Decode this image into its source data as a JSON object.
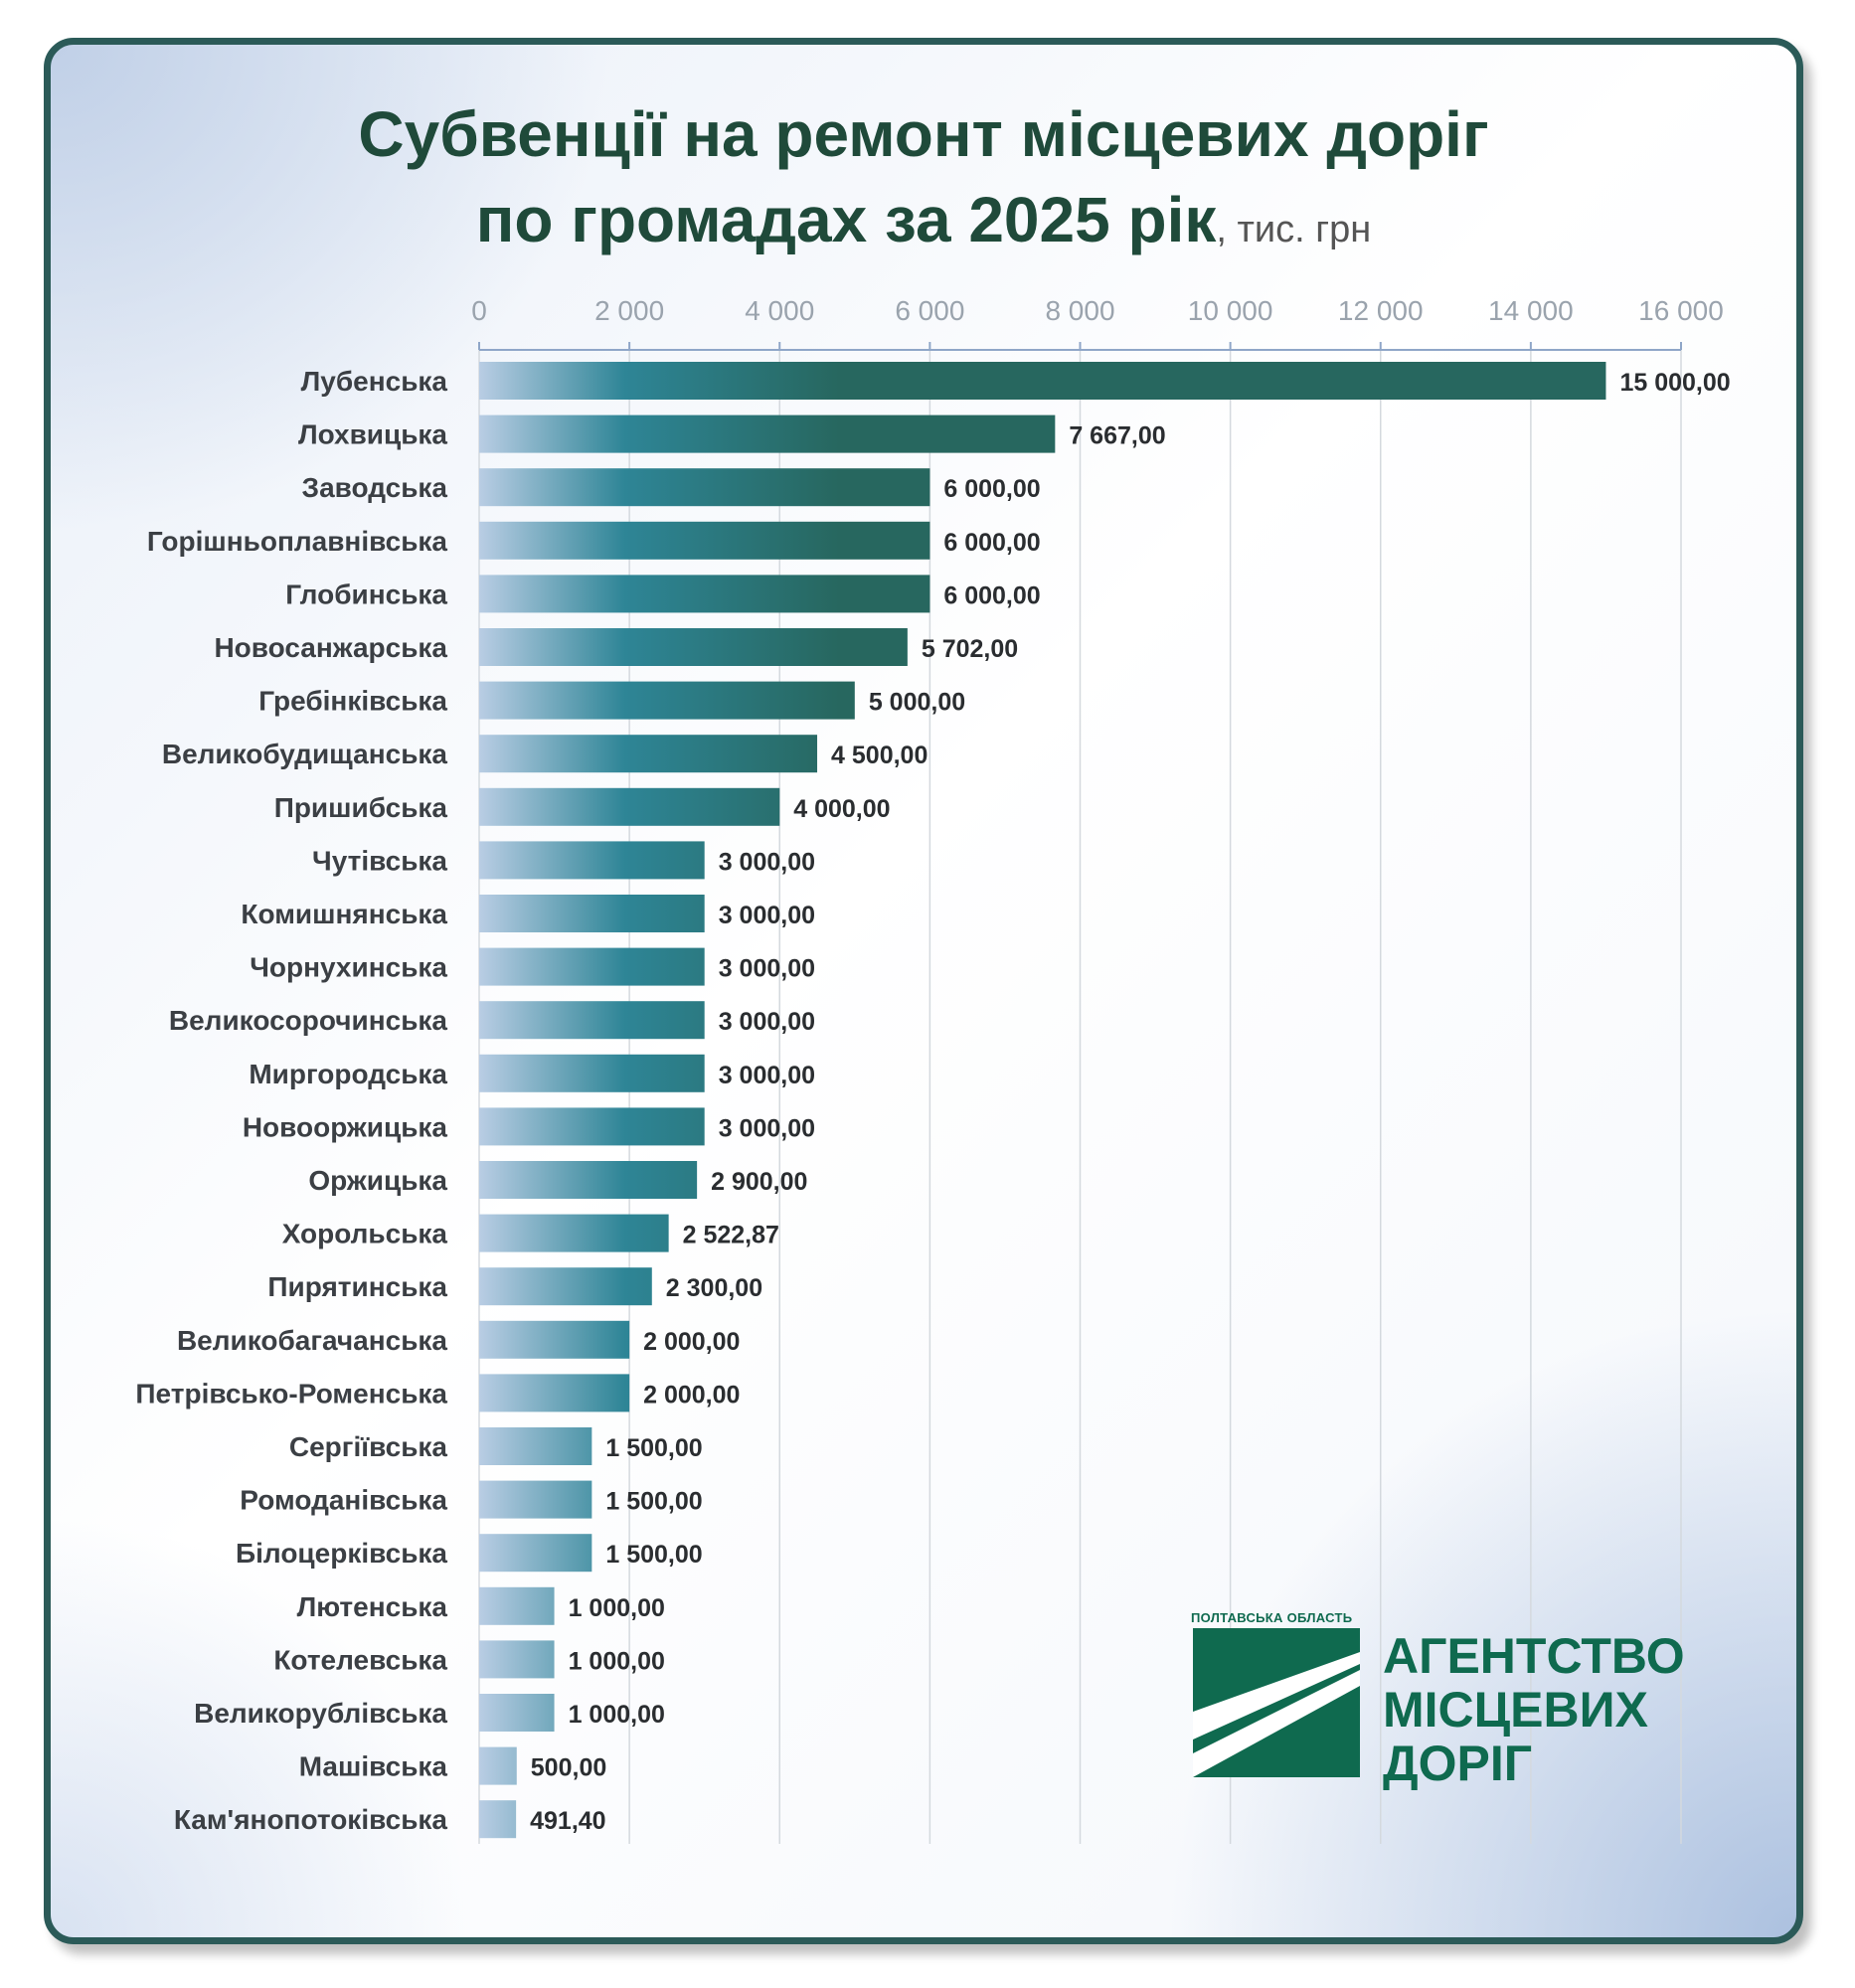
{
  "title": {
    "line1": "Субвенції на ремонт місцевих доріг",
    "line2": "по громадах за 2025 рік",
    "unit": ", тис. грн"
  },
  "colors": {
    "bar_dark": "#27675f",
    "bar_mid": "#2e8596",
    "bar_light": "#b9cde4",
    "title": "#1f4a3a",
    "border": "#2b5a58",
    "brand": "#0f6a4f"
  },
  "chart_data": {
    "type": "bar",
    "orientation": "horizontal",
    "xlim": [
      0,
      16000
    ],
    "ticks": [
      "0",
      "2 000",
      "4 000",
      "6 000",
      "8 000",
      "10 000",
      "12 000",
      "14 000",
      "16 000"
    ],
    "tick_values": [
      0,
      2000,
      4000,
      6000,
      8000,
      10000,
      12000,
      14000,
      16000
    ],
    "grid": true,
    "axis_position": "top",
    "categories": [
      "Лубенська",
      "Лохвицька",
      "Заводська",
      "Горішньоплавнівська",
      "Глобинська",
      "Новосанжарська",
      "Гребінківська",
      "Великобудищанська",
      "Пришибська",
      "Чутівська",
      "Комишнянська",
      "Чорнухинська",
      "Великосорочинська",
      "Миргородська",
      "Новооржицька",
      "Оржицька",
      "Хорольська",
      "Пирятинська",
      "Великобагачанська",
      "Петрівсько-Роменська",
      "Сергіївська",
      "Ромоданівська",
      "Білоцерківська",
      "Лютенська",
      "Котелевська",
      "Великорублівська",
      "Машівська",
      "Кам'янопотоківська"
    ],
    "values": [
      15000,
      7667,
      6000,
      6000,
      6000,
      5702,
      5000,
      4500,
      4000,
      3000,
      3000,
      3000,
      3000,
      3000,
      3000,
      2900,
      2522.87,
      2300,
      2000,
      2000,
      1500,
      1500,
      1500,
      1000,
      1000,
      1000,
      500,
      491.4
    ],
    "labels": [
      "15 000,00",
      "7 667,00",
      "6 000,00",
      "6 000,00",
      "6 000,00",
      "5 702,00",
      "5 000,00",
      "4 500,00",
      "4 000,00",
      "3 000,00",
      "3 000,00",
      "3 000,00",
      "3 000,00",
      "3 000,00",
      "3 000,00",
      "2 900,00",
      "2 522,87",
      "2 300,00",
      "2 000,00",
      "2 000,00",
      "1 500,00",
      "1 500,00",
      "1 500,00",
      "1 000,00",
      "1 000,00",
      "1 000,00",
      "500,00",
      "491,40"
    ]
  },
  "logo": {
    "caption": "ПОЛТАВСЬКА ОБЛАСТЬ",
    "line1": "АГЕНТСТВО",
    "line2": "МІСЦЕВИХ",
    "line3": "ДОРІГ"
  }
}
